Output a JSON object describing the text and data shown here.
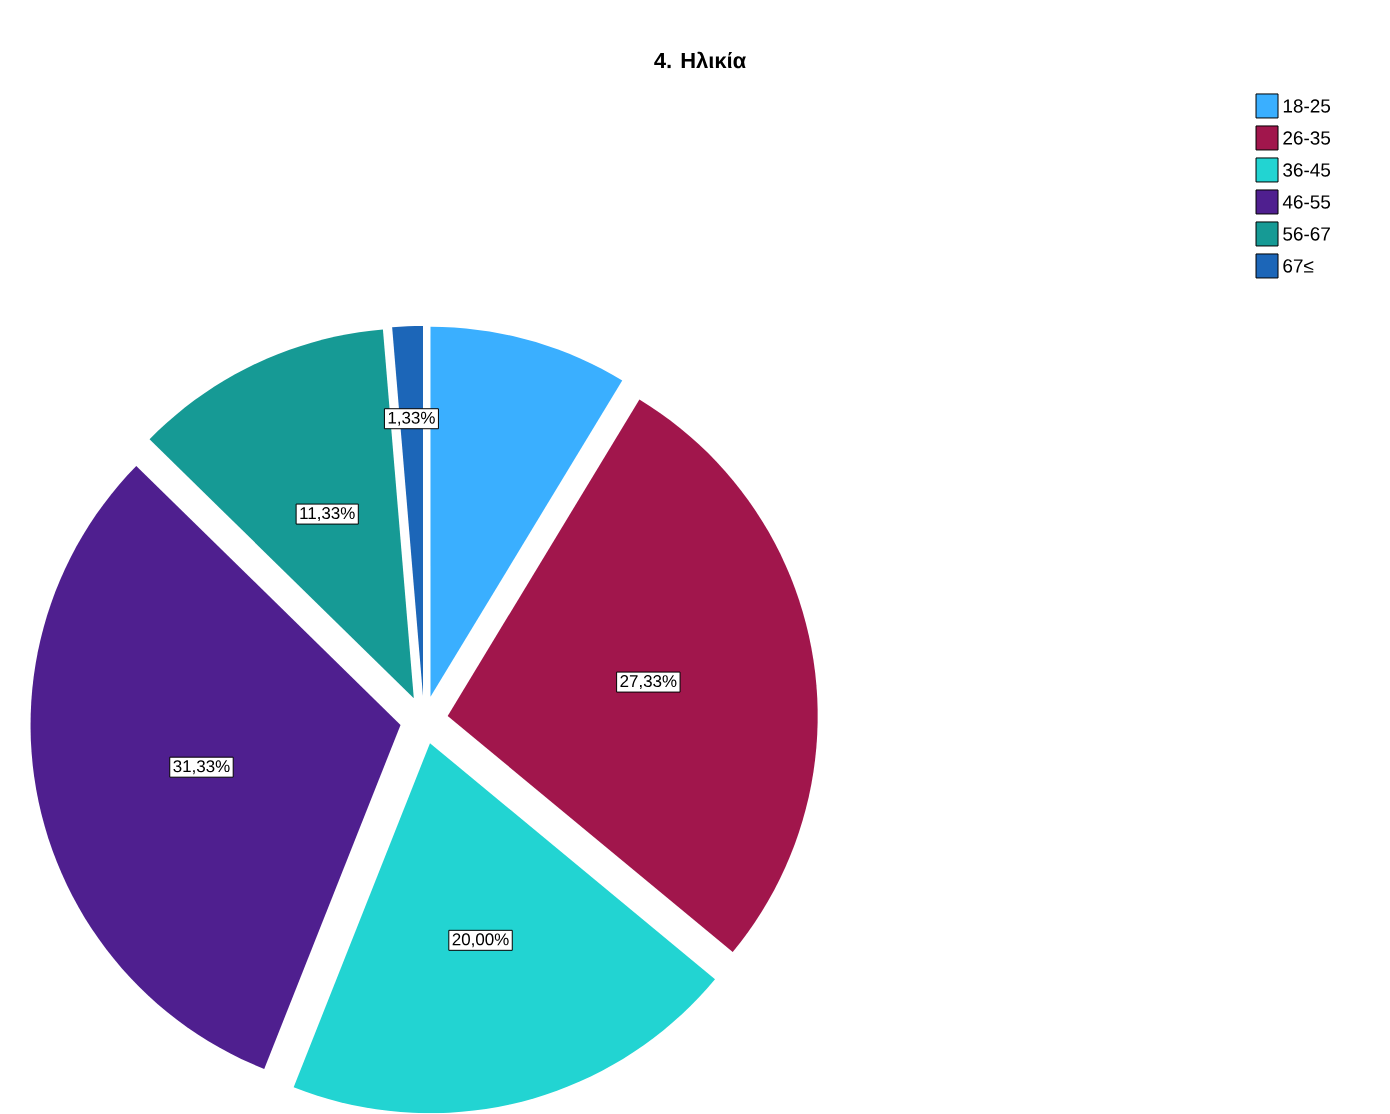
{
  "chart_data": {
    "type": "pie",
    "title": "4. Ηλικία",
    "categories": [
      "18-25",
      "26-35",
      "36-45",
      "46-55",
      "56-67",
      "67≤"
    ],
    "values": [
      8.67,
      27.33,
      20.0,
      31.33,
      11.33,
      1.33
    ],
    "value_labels": [
      null,
      "27,33%",
      "20,00%",
      "31,33%",
      "11,33%",
      "1,33%"
    ],
    "colors": [
      "#3aafff",
      "#a1164c",
      "#22d4d2",
      "#4f1f8f",
      "#169a95",
      "#1c66b8"
    ],
    "legend": "top right"
  }
}
